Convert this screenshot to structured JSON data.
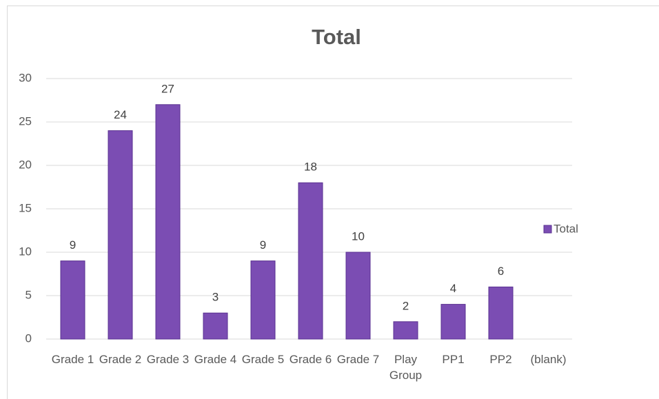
{
  "chart_data": {
    "type": "bar",
    "title": "Total",
    "categories": [
      "Grade 1",
      "Grade 2",
      "Grade 3",
      "Grade 4",
      "Grade 5",
      "Grade 6",
      "Grade 7",
      "Play Group",
      "PP1",
      "PP2",
      "(blank)"
    ],
    "series": [
      {
        "name": "Total",
        "color": "#7b4db3",
        "values": [
          9,
          24,
          27,
          3,
          9,
          18,
          10,
          2,
          4,
          6,
          null
        ]
      }
    ],
    "ylim": [
      0,
      30
    ],
    "yticks": [
      0,
      5,
      10,
      15,
      20,
      25,
      30
    ],
    "grid": true,
    "legend": "right"
  }
}
